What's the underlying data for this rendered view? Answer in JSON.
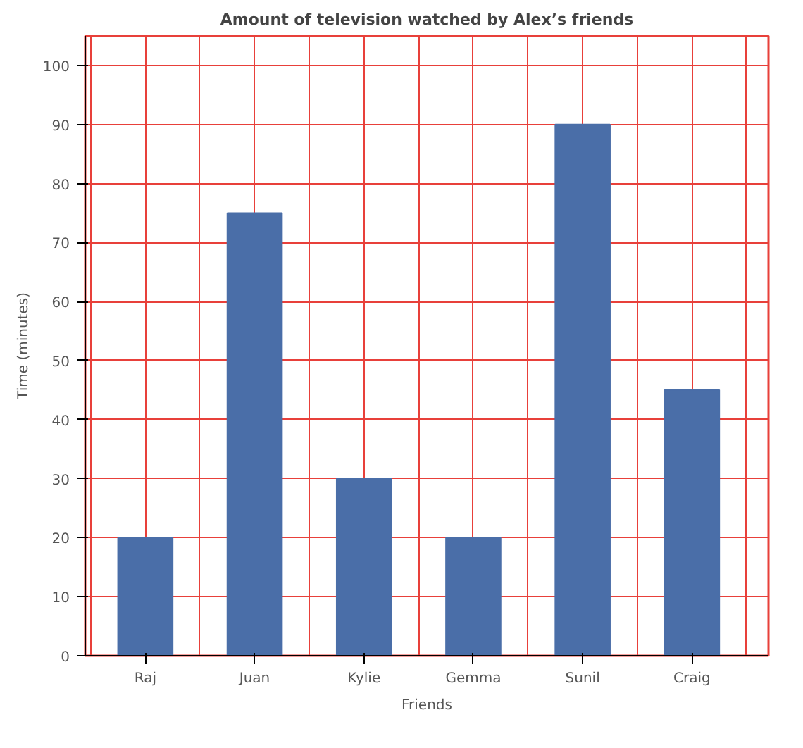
{
  "chart_data": {
    "type": "bar",
    "title": "Amount of television watched by Alex’s friends",
    "xlabel": "Friends",
    "ylabel": "Time (minutes)",
    "categories": [
      "Raj",
      "Juan",
      "Kylie",
      "Gemma",
      "Sunil",
      "Craig"
    ],
    "values": [
      20,
      75,
      30,
      20,
      90,
      45
    ],
    "color": "#4a6ea8",
    "ylim": [
      0,
      105
    ],
    "yticks": [
      0,
      10,
      20,
      30,
      40,
      50,
      60,
      70,
      80,
      90,
      100
    ],
    "grid": true
  }
}
